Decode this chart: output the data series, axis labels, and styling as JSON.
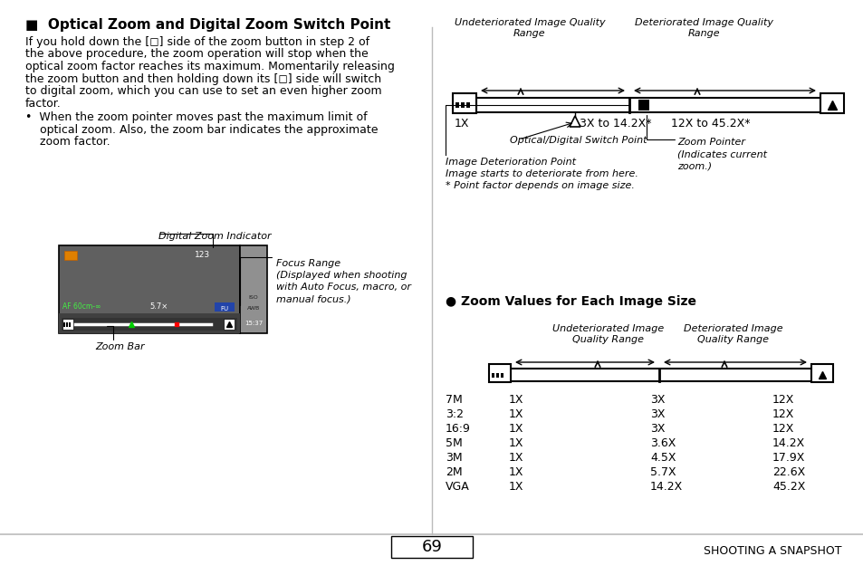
{
  "bg_color": "#ffffff",
  "page_number": "69",
  "footer_text": "SHOOTING A SNAPSHOT",
  "title": "■  Optical Zoom and Digital Zoom Switch Point",
  "body_text": [
    "If you hold down the [◻] side of the zoom button in step 2 of",
    "the above procedure, the zoom operation will stop when the",
    "optical zoom factor reaches its maximum. Momentarily releasing",
    "the zoom button and then holding down its [◻] side will switch",
    "to digital zoom, which you can use to set an even higher zoom",
    "factor."
  ],
  "bullet_text": [
    "•  When the zoom pointer moves past the maximum limit of",
    "    optical zoom. Also, the zoom bar indicates the approximate",
    "    zoom factor."
  ],
  "zoom_table_title": "● Zoom Values for Each Image Size",
  "zoom_table_rows": [
    [
      "7M",
      "1X",
      "3X",
      "12X"
    ],
    [
      "3:2",
      "1X",
      "3X",
      "12X"
    ],
    [
      "16:9",
      "1X",
      "3X",
      "12X"
    ],
    [
      "5M",
      "1X",
      "3.6X",
      "14.2X"
    ],
    [
      "3M",
      "1X",
      "4.5X",
      "17.9X"
    ],
    [
      "2M",
      "1X",
      "5.7X",
      "22.6X"
    ],
    [
      "VGA",
      "1X",
      "14.2X",
      "45.2X"
    ]
  ]
}
